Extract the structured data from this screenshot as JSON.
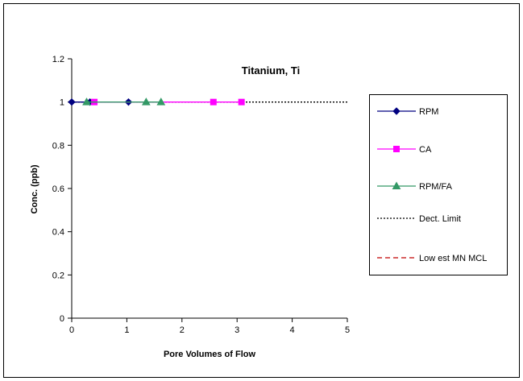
{
  "chart_data": {
    "type": "line",
    "title": "Titanium, Ti",
    "xlabel": "Pore Volumes of Flow",
    "ylabel": "Conc. (ppb)",
    "xlim": [
      0,
      5
    ],
    "ylim": [
      0,
      1.2
    ],
    "x_ticks": [
      0,
      1,
      2,
      3,
      4,
      5
    ],
    "y_ticks": [
      0,
      0.2,
      0.4,
      0.6,
      0.8,
      1,
      1.2
    ],
    "x_tick_labels": [
      "0",
      "1",
      "2",
      "3",
      "4",
      "5"
    ],
    "y_tick_labels": [
      "0",
      "0.2",
      "0.4",
      "0.6",
      "0.8",
      "1",
      "1.2"
    ],
    "grid": false,
    "legend_position": "right",
    "series": [
      {
        "name": "RPM",
        "color": "#000080",
        "marker": "diamond",
        "line": "solid",
        "x": [
          0.0,
          0.33,
          1.03
        ],
        "y": [
          1,
          1,
          1
        ]
      },
      {
        "name": "CA",
        "color": "#FF00FF",
        "marker": "square",
        "line": "solid",
        "x": [
          0.41,
          2.57,
          3.08
        ],
        "y": [
          1,
          1,
          1
        ]
      },
      {
        "name": "RPM/FA",
        "color": "#339966",
        "marker": "triangle",
        "line": "solid",
        "x": [
          0.27,
          1.35,
          1.62
        ],
        "y": [
          1,
          1,
          1
        ]
      },
      {
        "name": "Dect. Limit",
        "color": "#000000",
        "marker": "none",
        "line": "dotted",
        "x": [
          0,
          5
        ],
        "y": [
          1,
          1
        ]
      },
      {
        "name": "Low est MN MCL",
        "color": "#C00000",
        "marker": "none",
        "line": "dashed",
        "x": [],
        "y": []
      }
    ]
  }
}
